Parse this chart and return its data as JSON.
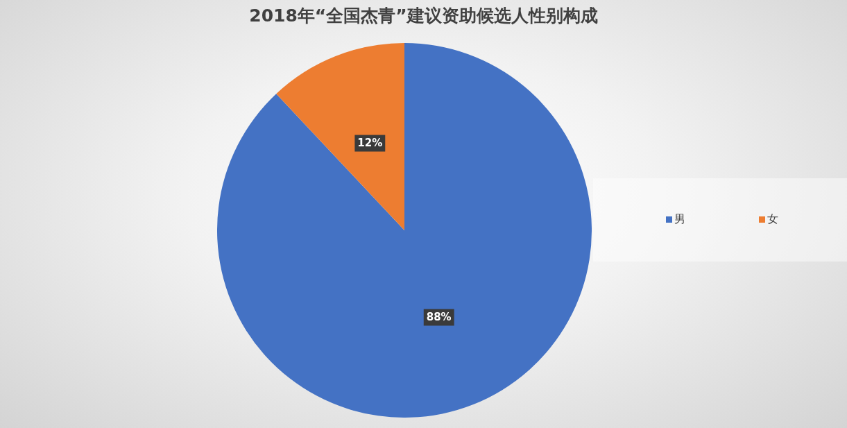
{
  "chart_data": {
    "type": "pie",
    "title": "2018年“全国杰青”建议资助候选人性别构成",
    "categories": [
      "男",
      "女"
    ],
    "values": [
      88,
      12
    ],
    "colors": [
      "#4472c4",
      "#ed7d31"
    ],
    "value_labels": [
      "88%",
      "12%"
    ],
    "legend": "right"
  }
}
